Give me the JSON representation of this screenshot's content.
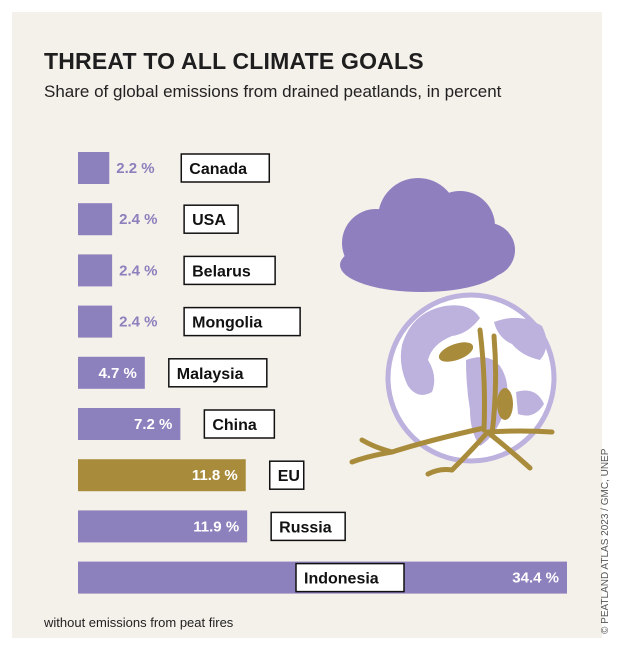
{
  "chart_data": {
    "type": "bar",
    "orientation": "horizontal",
    "title": "THREAT TO ALL CLIMATE GOALS",
    "subtitle": "Share of global emissions from drained peatlands, in percent",
    "categories": [
      "Canada",
      "USA",
      "Belarus",
      "Mongolia",
      "Malaysia",
      "China",
      "EU",
      "Russia",
      "Indonesia"
    ],
    "values": [
      2.2,
      2.4,
      2.4,
      2.4,
      4.7,
      7.2,
      11.8,
      11.9,
      34.4
    ],
    "value_labels": [
      "2.2 %",
      "2.4 %",
      "2.4 %",
      "2.4 %",
      "4.7 %",
      "7.2 %",
      "11.8 %",
      "11.9 %",
      "34.4 %"
    ],
    "unit": "%",
    "highlight": "EU",
    "colors": {
      "default": "#8c80bd",
      "highlight": "#a98c3b",
      "background": "#f4f0ea",
      "cloud": "#8f7fbf",
      "globe_ocean": "#ffffff",
      "globe_land": "#bdb1de",
      "roots": "#a98c3b"
    },
    "xlabel": "",
    "ylabel": "",
    "grid": false,
    "legend": "none"
  },
  "footnote": "without emissions from peat fires",
  "credit": "© PEATLAND ATLAS 2023 / GMC, UNEP",
  "illustration": {
    "icons": [
      "cloud-icon",
      "globe-icon",
      "peat-roots-icon"
    ]
  }
}
